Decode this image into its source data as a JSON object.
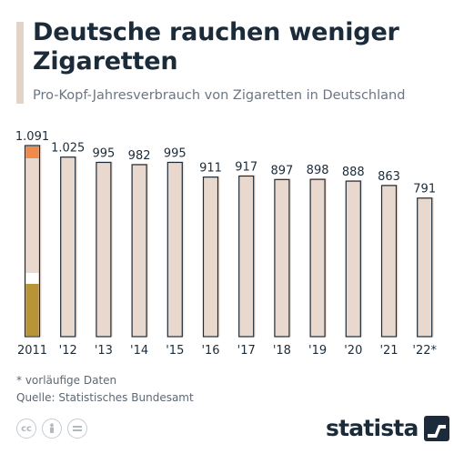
{
  "title": "Deutsche rauchen weniger Zigaretten",
  "subtitle": "Pro-Kopf-Jahresverbrauch von Zigaretten in Deutschland",
  "footnote": "* vorläufige Daten",
  "source": "Quelle: Statistisches Bundesamt",
  "brand": "statista",
  "license_icons": [
    "cc-icon",
    "person-icon",
    "equals-icon"
  ],
  "colors": {
    "bar_fill": "#e8d8cd",
    "bar_shadow": "#f0dfd3",
    "bar_outline": "#1c2b3a",
    "cigarette_tip": "#f08a4b",
    "cigarette_band": "#ffffff",
    "cigarette_filter": "#b89436",
    "text": "#1c2b3a",
    "muted": "#6b7682"
  },
  "chart_data": {
    "type": "bar",
    "categories": [
      "2011",
      "'12",
      "'13",
      "'14",
      "'15",
      "'16",
      "'17",
      "'18",
      "'19",
      "'20",
      "'21",
      "'22*"
    ],
    "value_labels": [
      "1.091",
      "1.025",
      "995",
      "982",
      "995",
      "911",
      "917",
      "897",
      "898",
      "888",
      "863",
      "791"
    ],
    "values": [
      1091,
      1025,
      995,
      982,
      995,
      911,
      917,
      897,
      898,
      888,
      863,
      791
    ],
    "title": "Deutsche rauchen weniger Zigaretten",
    "subtitle": "Pro-Kopf-Jahresverbrauch von Zigaretten in Deutschland",
    "xlabel": "",
    "ylabel": "",
    "ylim": [
      0,
      1091
    ],
    "grid": false,
    "legend": "none"
  }
}
